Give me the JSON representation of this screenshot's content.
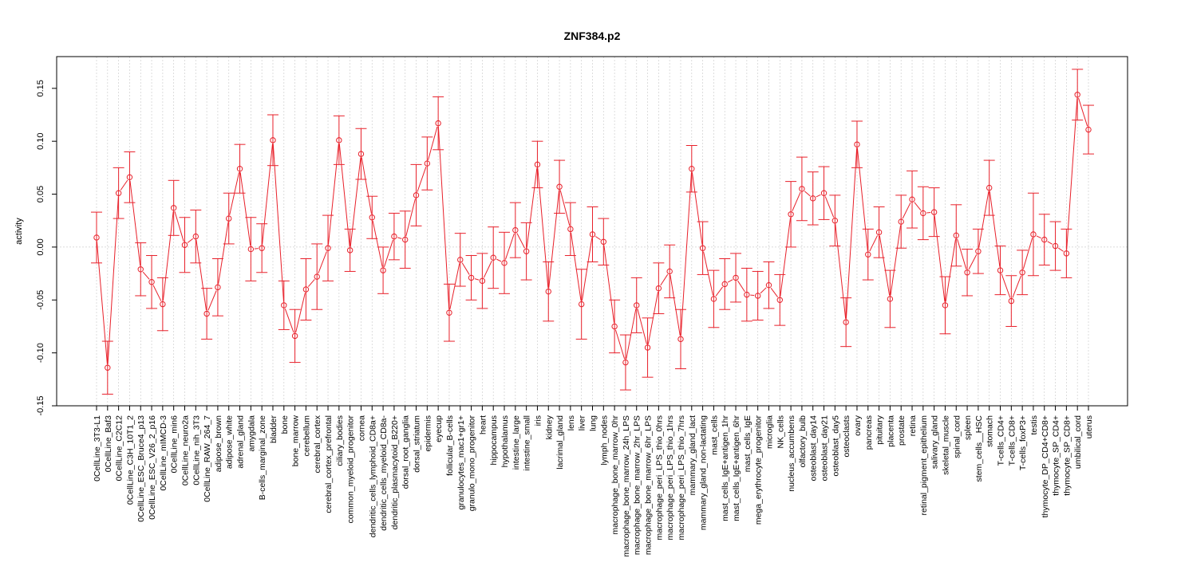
{
  "chart_data": {
    "type": "line",
    "title": "ZNF384.p2",
    "xlabel": "",
    "ylabel": "activity",
    "ylim": [
      -0.15,
      0.18
    ],
    "yticks": [
      -0.15,
      -0.1,
      -0.05,
      0.0,
      0.05,
      0.1,
      0.15
    ],
    "ytick_labels": [
      "-0.15",
      "-0.10",
      "-0.05",
      "0.00",
      "0.05",
      "0.10",
      "0.15"
    ],
    "grid": true,
    "reference_line": 0,
    "colors": {
      "series": "#e8202a",
      "grid": "#cfcfcf",
      "axis": "#000000"
    },
    "categories": [
      "0CellLine_3T3-L1",
      "0CellLine_Baf3",
      "0CellLine_C2C12",
      "0CellLine_C3H_10T1_2",
      "0CellLine_ESC_Bruce4_p13",
      "0CellLine_ESC_V26_2_p16",
      "0CellLine_mIMCD-3",
      "0CellLine_min6",
      "0CellLine_neuro2a",
      "0CellLine_nih_3T3",
      "0CellLine_RAW_264_7",
      "adipose_brown",
      "adipose_white",
      "adrenal_gland",
      "amygdala",
      "B-cells_marginal_zone",
      "bladder",
      "bone",
      "bone_marrow",
      "cerebellum",
      "cerebral_cortex",
      "cerebral_cortex_prefrontal",
      "ciliary_bodies",
      "common_myeloid_progenitor",
      "cornea",
      "dendritic_cells_lymphoid_CD8a+",
      "dendritic_cells_myeloid_CD8a-",
      "dendritic_plasmacytoid_B220+",
      "dorsal_root_ganglia",
      "dorsal_striatum",
      "epidermis",
      "eyecup",
      "follicular_B-cells",
      "granulocytes_mac1+gr1+",
      "granulo_mono_progenitor",
      "heart",
      "hippocampus",
      "hypothalamus",
      "intestine_large",
      "intestine_small",
      "iris",
      "kidney",
      "lacrimal_gland",
      "lens",
      "liver",
      "lung",
      "lymph_nodes",
      "macrophage_bone_marrow_0hr",
      "macrophage_bone_marrow_24h_LPS",
      "macrophage_bone_marrow_2hr_LPS",
      "macrophage_bone_marrow_6hr_LPS",
      "macrophage_peri_LPS_thio_0hrs",
      "macrophage_peri_LPS_thio_1hrs",
      "macrophage_peri_LPS_thio_7hrs",
      "mammary_gland_lact",
      "mammary_gland_non-lactating",
      "mast_cells",
      "mast_cells_IgE+antigen_1hr",
      "mast_cells_IgE+antigen_6hr",
      "mast_cells_IgE",
      "mega_erythrocyte_progenitor",
      "microglia",
      "NK_cells",
      "nucleus_accumbens",
      "olfactory_bulb",
      "osteoblast_day14",
      "osteoblast_day21",
      "osteoblast_day5",
      "osteoclasts",
      "ovary",
      "pancreas",
      "pituitary",
      "placenta",
      "prostate",
      "retina",
      "retinal_pigment_epithelium",
      "salivary_gland",
      "skeletal_muscle",
      "spinal_cord",
      "spleen",
      "stem_cells__HSC",
      "stomach",
      "T-cells_CD4+",
      "T-cells_CD8+",
      "T-cells_foxP3+",
      "testis",
      "thymocyte_DP_CD4+CD8+",
      "thymocyte_SP_CD4+",
      "thymocyte_SP_CD8+",
      "umbilical_cord",
      "uterus"
    ],
    "series": [
      {
        "values": [
          0.009,
          -0.114,
          0.051,
          0.066,
          -0.021,
          -0.033,
          -0.054,
          0.037,
          0.002,
          0.01,
          -0.063,
          -0.038,
          0.027,
          0.074,
          -0.002,
          -0.001,
          0.101,
          -0.055,
          -0.084,
          -0.04,
          -0.028,
          -0.001,
          0.101,
          -0.003,
          0.088,
          0.028,
          -0.022,
          0.01,
          0.007,
          0.049,
          0.079,
          0.117,
          -0.062,
          -0.012,
          -0.029,
          -0.032,
          -0.01,
          -0.015,
          0.016,
          -0.004,
          0.078,
          -0.042,
          0.057,
          0.017,
          -0.054,
          0.012,
          0.005,
          -0.075,
          -0.109,
          -0.055,
          -0.095,
          -0.039,
          -0.023,
          -0.087,
          0.074,
          -0.001,
          -0.049,
          -0.035,
          -0.029,
          -0.045,
          -0.046,
          -0.036,
          -0.05,
          0.031,
          0.055,
          0.046,
          0.051,
          0.025,
          -0.071,
          0.097,
          -0.007,
          0.014,
          -0.049,
          0.024,
          0.045,
          0.032,
          0.033,
          -0.055,
          0.011,
          -0.024,
          -0.004,
          0.056,
          -0.022,
          -0.051,
          -0.024,
          0.012,
          0.007,
          0.001,
          -0.006,
          0.144,
          0.111
        ],
        "errors": [
          0.024,
          0.025,
          0.024,
          0.024,
          0.025,
          0.025,
          0.025,
          0.026,
          0.026,
          0.025,
          0.024,
          0.027,
          0.024,
          0.023,
          0.03,
          0.023,
          0.024,
          0.023,
          0.025,
          0.029,
          0.031,
          0.031,
          0.023,
          0.02,
          0.024,
          0.02,
          0.022,
          0.022,
          0.027,
          0.029,
          0.025,
          0.025,
          0.027,
          0.025,
          0.021,
          0.026,
          0.029,
          0.029,
          0.026,
          0.027,
          0.022,
          0.028,
          0.025,
          0.025,
          0.033,
          0.026,
          0.022,
          0.025,
          0.026,
          0.026,
          0.028,
          0.024,
          0.025,
          0.028,
          0.022,
          0.025,
          0.027,
          0.024,
          0.023,
          0.025,
          0.023,
          0.022,
          0.024,
          0.031,
          0.03,
          0.025,
          0.025,
          0.024,
          0.023,
          0.022,
          0.024,
          0.024,
          0.027,
          0.025,
          0.027,
          0.025,
          0.023,
          0.027,
          0.029,
          0.022,
          0.021,
          0.026,
          0.023,
          0.024,
          0.021,
          0.039,
          0.024,
          0.023,
          0.023,
          0.024,
          0.023
        ]
      }
    ]
  }
}
